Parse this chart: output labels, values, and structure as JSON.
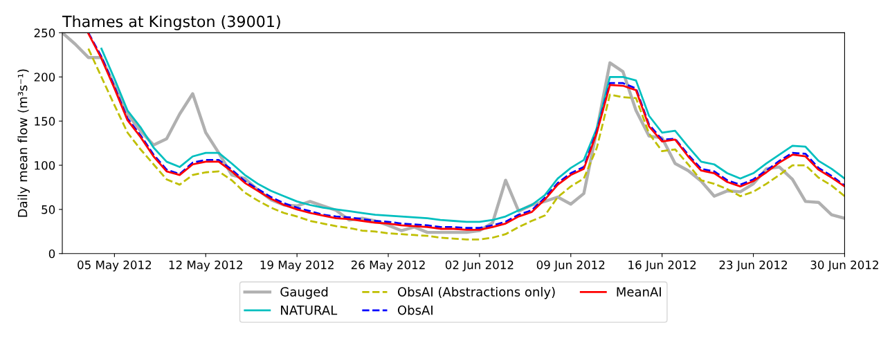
{
  "chart_data": {
    "type": "line",
    "title": "Thames at Kingston (39001)",
    "ylabel": "Daily mean flow (m³s⁻¹)",
    "x": [
      "2012-05-01",
      "2012-05-02",
      "2012-05-03",
      "2012-05-04",
      "2012-05-05",
      "2012-05-06",
      "2012-05-07",
      "2012-05-08",
      "2012-05-09",
      "2012-05-10",
      "2012-05-11",
      "2012-05-12",
      "2012-05-13",
      "2012-05-14",
      "2012-05-15",
      "2012-05-16",
      "2012-05-17",
      "2012-05-18",
      "2012-05-19",
      "2012-05-20",
      "2012-05-21",
      "2012-05-22",
      "2012-05-23",
      "2012-05-24",
      "2012-05-25",
      "2012-05-26",
      "2012-05-27",
      "2012-05-28",
      "2012-05-29",
      "2012-05-30",
      "2012-05-31",
      "2012-06-01",
      "2012-06-02",
      "2012-06-03",
      "2012-06-04",
      "2012-06-05",
      "2012-06-06",
      "2012-06-07",
      "2012-06-08",
      "2012-06-09",
      "2012-06-10",
      "2012-06-11",
      "2012-06-12",
      "2012-06-13",
      "2012-06-14",
      "2012-06-15",
      "2012-06-16",
      "2012-06-17",
      "2012-06-18",
      "2012-06-19",
      "2012-06-20",
      "2012-06-21",
      "2012-06-22",
      "2012-06-23",
      "2012-06-24",
      "2012-06-25",
      "2012-06-26",
      "2012-06-27",
      "2012-06-28",
      "2012-06-29",
      "2012-06-30"
    ],
    "series": [
      {
        "name": "Gauged",
        "color": "#b0b0b0",
        "line_style": "solid",
        "values": [
          250,
          237,
          222,
          222,
          190,
          158,
          139,
          123,
          130,
          158,
          181,
          137,
          114,
          89,
          85,
          72,
          61,
          55,
          54,
          59,
          54,
          49,
          38,
          40,
          37,
          32,
          26,
          30,
          24,
          24,
          24,
          24,
          26,
          35,
          83,
          48,
          55,
          59,
          64,
          56,
          68,
          140,
          216,
          206,
          162,
          133,
          131,
          102,
          94,
          82,
          65,
          71,
          70,
          79,
          96,
          98,
          84,
          59,
          58,
          44,
          40
        ]
      },
      {
        "name": "NATURAL",
        "color": "#00bfbf",
        "line_style": "solid",
        "values": [
          null,
          null,
          null,
          232,
          198,
          162,
          143,
          120,
          104,
          98,
          110,
          114,
          114,
          102,
          89,
          79,
          71,
          65,
          59,
          55,
          52,
          50,
          48,
          46,
          44,
          43,
          42,
          41,
          40,
          38,
          37,
          36,
          36,
          38,
          42,
          49,
          55,
          66,
          85,
          97,
          106,
          142,
          200,
          200,
          196,
          156,
          137,
          139,
          121,
          104,
          101,
          91,
          85,
          91,
          102,
          112,
          122,
          121,
          105,
          96,
          85
        ]
      },
      {
        "name": "ObsAI (Abstractions only)",
        "color": "#bfbf00",
        "line_style": "dashed",
        "values": [
          null,
          null,
          232,
          200,
          168,
          137,
          118,
          101,
          84,
          78,
          89,
          92,
          93,
          83,
          69,
          60,
          52,
          46,
          42,
          37,
          34,
          31,
          29,
          26,
          25,
          23,
          22,
          21,
          20,
          18,
          17,
          16,
          16,
          18,
          22,
          30,
          37,
          43,
          64,
          76,
          85,
          120,
          180,
          177,
          176,
          136,
          116,
          118,
          101,
          83,
          79,
          73,
          65,
          70,
          79,
          89,
          100,
          100,
          86,
          77,
          65
        ]
      },
      {
        "name": "ObsAI",
        "color": "#0000ff",
        "line_style": "dashed",
        "values": [
          null,
          null,
          250,
          223,
          189,
          153,
          134,
          112,
          95,
          90,
          103,
          106,
          106,
          95,
          82,
          73,
          64,
          57,
          52,
          48,
          44,
          42,
          41,
          39,
          37,
          36,
          34,
          33,
          32,
          30,
          30,
          29,
          29,
          32,
          36,
          44,
          49,
          63,
          80,
          91,
          98,
          139,
          193,
          193,
          187,
          146,
          129,
          130,
          112,
          96,
          93,
          83,
          78,
          84,
          94,
          105,
          114,
          113,
          97,
          88,
          77
        ]
      },
      {
        "name": "MeanAI",
        "color": "#ff0000",
        "line_style": "solid",
        "values": [
          null,
          null,
          249,
          221,
          187,
          151,
          132,
          110,
          93,
          89,
          101,
          104,
          104,
          93,
          80,
          71,
          62,
          55,
          50,
          46,
          43,
          40,
          39,
          37,
          35,
          34,
          32,
          31,
          30,
          28,
          28,
          27,
          27,
          30,
          34,
          42,
          47,
          61,
          78,
          89,
          96,
          137,
          191,
          190,
          185,
          144,
          127,
          129,
          110,
          94,
          91,
          81,
          76,
          82,
          92,
          103,
          112,
          110,
          95,
          86,
          76
        ]
      }
    ],
    "xlim": [
      "2012-05-01",
      "2012-06-30"
    ],
    "xticks": [
      {
        "value": "2012-05-05",
        "label": "05 May 2012"
      },
      {
        "value": "2012-05-12",
        "label": "12 May 2012"
      },
      {
        "value": "2012-05-19",
        "label": "19 May 2012"
      },
      {
        "value": "2012-05-26",
        "label": "26 May 2012"
      },
      {
        "value": "2012-06-02",
        "label": "02 Jun 2012"
      },
      {
        "value": "2012-06-09",
        "label": "09 Jun 2012"
      },
      {
        "value": "2012-06-16",
        "label": "16 Jun 2012"
      },
      {
        "value": "2012-06-23",
        "label": "23 Jun 2012"
      },
      {
        "value": "2012-06-30",
        "label": "30 Jun 2012"
      }
    ],
    "ylim": [
      0,
      250
    ],
    "yticks": [
      0,
      50,
      100,
      150,
      200,
      250
    ],
    "grid": false,
    "legend": "bottom",
    "marker": "none"
  }
}
